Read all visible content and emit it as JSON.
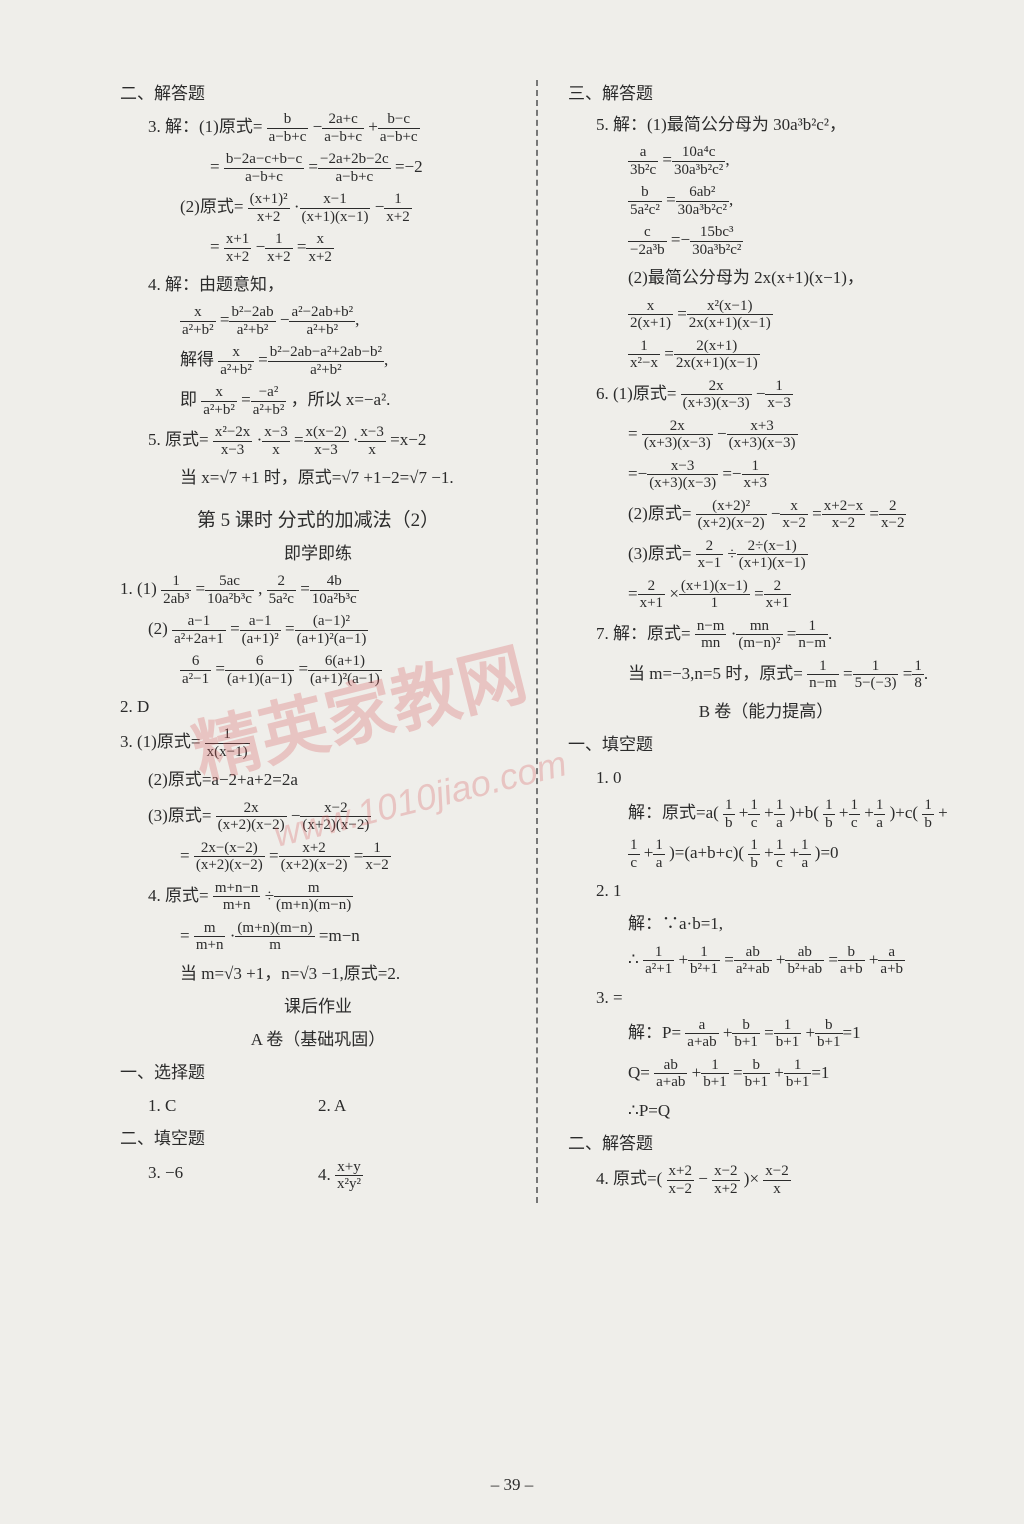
{
  "pageNumber": "– 39 –",
  "watermark_main": "精英家教网",
  "watermark_url": "www.1010jiao.com",
  "left": {
    "sec2_title": "二、解答题",
    "q3_open": "3. 解：(1)原式=",
    "q3_l2": "=",
    "q3_l2_eq": "=−2",
    "q3_l3": "(2)原式=",
    "q3_l4": "=",
    "q4_open": "4. 解：由题意知，",
    "q4_solve": "解得",
    "q4_ji": "即",
    "q4_end": "，所以 x=−a².",
    "q5_open": "5. 原式=",
    "q5_mid": "=x−2",
    "q5_when": "当 x=√7 +1 时，原式=√7 +1−2=√7 −1.",
    "lesson5_title": "第 5 课时 分式的加减法（2）",
    "jixue": "即学即练",
    "l1_1": "1. (1)",
    "l1_2": "(2)",
    "l2": "2. D",
    "l3_1": "3. (1)原式=",
    "l3_2": "(2)原式=a−2+a+2=2a",
    "l3_3": "(3)原式=",
    "l3_3b": "=",
    "l4": "4. 原式=",
    "l4b": "=",
    "l4c": "=m−n",
    "l4_when": "当 m=√3 +1，n=√3 −1,原式=2.",
    "homework_title": "课后作业",
    "a_title": "A 卷（基础巩固）",
    "xz_title": "一、选择题",
    "xz_1": "1. C",
    "xz_2": "2. A",
    "tk_title": "二、填空题",
    "tk_3": "3. −6",
    "tk_4": "4."
  },
  "right": {
    "sec3_title": "三、解答题",
    "r5_open": "5. 解：(1)最简公分母为 30a³b²c²，",
    "r5_l4": "(2)最简公分母为 2x(x+1)(x−1)，",
    "r6_open": "6. (1)原式=",
    "r6_eq": "=",
    "r6_2": "(2)原式=",
    "r6_3": "(3)原式=",
    "r7_open": "7. 解：原式=",
    "r7_when": "当 m=−3,n=5 时，原式=",
    "b_title": "B 卷（能力提高）",
    "tk_title2": "一、填空题",
    "b1": "1. 0",
    "b1_jie": "解：原式=a(",
    "b1_mid": " )+b(",
    "b1_mid2": " )+c(",
    "b1_plus": " +",
    "b1_end": ")=(a+b+c)(",
    "b1_final": ")=0",
    "b2": "2. 1",
    "b2_jie": "解：∵a·b=1,",
    "b2_so": "∴",
    "b3": "3. =",
    "b3_jie": "解：P=",
    "b3_q": "Q=",
    "b3_end": "∴P=Q",
    "jd_title": "二、解答题",
    "b4": "4. 原式=( ",
    "b4_mid": " − ",
    "b4_end": " )×"
  },
  "f": {
    "l3a_n": "b",
    "l3a_d": "a−b+c",
    "l3b_n": "2a+c",
    "l3b_d": "a−b+c",
    "l3c_n": "b−c",
    "l3c_d": "a−b+c",
    "l3d_n": "b−2a−c+b−c",
    "l3d_d": "a−b+c",
    "l3e_n": "−2a+2b−2c",
    "l3e_d": "a−b+c",
    "l3f_n": "(x+1)²",
    "l3f_d": "x+2",
    "l3g_n": "x−1",
    "l3g_d": "(x+1)(x−1)",
    "l3h_n": "1",
    "l3h_d": "x+2",
    "l3i_n": "x+1",
    "l3i_d": "x+2",
    "l3j_n": "1",
    "l3j_d": "x+2",
    "l3k_n": "x",
    "l3k_d": "x+2",
    "l4a_n": "x",
    "l4a_d": "a²+b²",
    "l4b_n": "b²−2ab",
    "l4b_d": "a²+b²",
    "l4c_n": "a²−2ab+b²",
    "l4c_d": "a²+b²",
    "l4d_n": "x",
    "l4d_d": "a²+b²",
    "l4e_n": "b²−2ab−a²+2ab−b²",
    "l4e_d": "a²+b²",
    "l4f_n": "x",
    "l4f_d": "a²+b²",
    "l4g_n": "−a²",
    "l4g_d": "a²+b²",
    "l5a_n": "x²−2x",
    "l5a_d": "x−3",
    "l5b_n": "x−3",
    "l5b_d": "x",
    "l5c_n": "x(x−2)",
    "l5c_d": "x−3",
    "l5d_n": "x−3",
    "l5d_d": "x",
    "j1a_n": "1",
    "j1a_d": "2ab³",
    "j1b_n": "5ac",
    "j1b_d": "10a²b³c",
    "j1c_n": "2",
    "j1c_d": "5a²c",
    "j1d_n": "4b",
    "j1d_d": "10a²b³c",
    "j2a_n": "a−1",
    "j2a_d": "a²+2a+1",
    "j2b_n": "a−1",
    "j2b_d": "(a+1)²",
    "j2c_n": "(a−1)²",
    "j2c_d": "(a+1)²(a−1)",
    "j2d_n": "6",
    "j2d_d": "a²−1",
    "j2e_n": "6",
    "j2e_d": "(a+1)(a−1)",
    "j2f_n": "6(a+1)",
    "j2f_d": "(a+1)²(a−1)",
    "j3a_n": "1",
    "j3a_d": "x(x−1)",
    "j3c_n": "2x",
    "j3c_d": "(x+2)(x−2)",
    "j3d_n": "x−2",
    "j3d_d": "(x+2)(x−2)",
    "j3e_n": "2x−(x−2)",
    "j3e_d": "(x+2)(x−2)",
    "j3f_n": "x+2",
    "j3f_d": "(x+2)(x−2)",
    "j3g_n": "1",
    "j3g_d": "x−2",
    "j4a_n": "m+n−n",
    "j4a_d": "m+n",
    "j4b_n": "m",
    "j4b_d": "(m+n)(m−n)",
    "j4c_n": "m",
    "j4c_d": "m+n",
    "j4d_n": "(m+n)(m−n)",
    "j4d_d": "m",
    "tk4_n": "x+y",
    "tk4_d": "x²y²",
    "r5a_n": "a",
    "r5a_d": "3b²c",
    "r5b_n": "10a⁴c",
    "r5b_d": "30a³b²c²",
    "r5c_n": "b",
    "r5c_d": "5a²c²",
    "r5d_n": "6ab²",
    "r5d_d": "30a³b²c²",
    "r5e_n": "c",
    "r5e_d": "−2a³b",
    "r5f_n": "15bc³",
    "r5f_d": "30a³b²c²",
    "r5g_n": "x",
    "r5g_d": "2(x+1)",
    "r5h_n": "x²(x−1)",
    "r5h_d": "2x(x+1)(x−1)",
    "r5i_n": "1",
    "r5i_d": "x²−x",
    "r5j_n": "2(x+1)",
    "r5j_d": "2x(x+1)(x−1)",
    "r6a_n": "2x",
    "r6a_d": "(x+3)(x−3)",
    "r6b_n": "1",
    "r6b_d": "x−3",
    "r6c_n": "2x",
    "r6c_d": "(x+3)(x−3)",
    "r6d_n": "x+3",
    "r6d_d": "(x+3)(x−3)",
    "r6e_n": "x−3",
    "r6e_d": "(x+3)(x−3)",
    "r6f_n": "1",
    "r6f_d": "x+3",
    "r62a_n": "(x+2)²",
    "r62a_d": "(x+2)(x−2)",
    "r62b_n": "x",
    "r62b_d": "x−2",
    "r62c_n": "x+2−x",
    "r62c_d": "x−2",
    "r62d_n": "2",
    "r62d_d": "x−2",
    "r63a_n": "2",
    "r63a_d": "x−1",
    "r63b_n": "2÷(x−1)",
    "r63b_d": "(x+1)(x−1)",
    "r63c_n": "2",
    "r63c_d": "x+1",
    "r63d_n": "(x+1)(x−1)",
    "r63d_d": "1",
    "r63e_n": "2",
    "r63e_d": "x+1",
    "r7a_n": "n−m",
    "r7a_d": "mn",
    "r7b_n": "mn",
    "r7b_d": "(m−n)²",
    "r7c_n": "1",
    "r7c_d": "n−m",
    "r7d_n": "1",
    "r7d_d": "n−m",
    "r7e_n": "1",
    "r7e_d": "5−(−3)",
    "r7f_n": "1",
    "r7f_d": "8",
    "b1a_n": "1",
    "b1a_d": "b",
    "b1b_n": "1",
    "b1b_d": "c",
    "b1c_n": "1",
    "b1c_d": "a",
    "b2a_n": "1",
    "b2a_d": "a²+1",
    "b2b_n": "1",
    "b2b_d": "b²+1",
    "b2c_n": "ab",
    "b2c_d": "a²+ab",
    "b2d_n": "ab",
    "b2d_d": "b²+ab",
    "b2e_n": "b",
    "b2e_d": "a+b",
    "b2f_n": "a",
    "b2f_d": "a+b",
    "b3a_n": "a",
    "b3a_d": "a+ab",
    "b3b_n": "b",
    "b3b_d": "b+1",
    "b3c_n": "1",
    "b3c_d": "b+1",
    "b3d_n": "b",
    "b3d_d": "b+1",
    "b3e_n": "ab",
    "b3e_d": "a+ab",
    "b3f_n": "1",
    "b3f_d": "b+1",
    "b4a_n": "x+2",
    "b4a_d": "x−2",
    "b4b_n": "x−2",
    "b4b_d": "x+2",
    "b4c_n": "x−2",
    "b4c_d": "x"
  }
}
